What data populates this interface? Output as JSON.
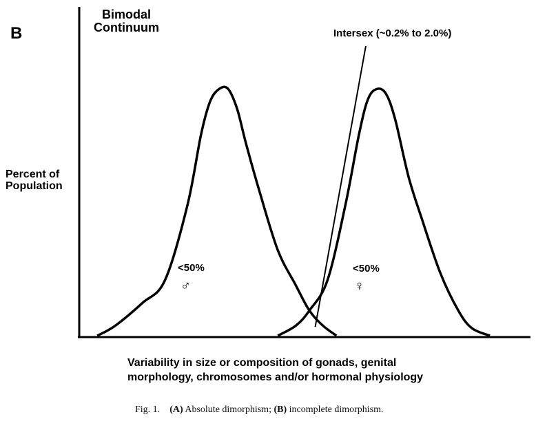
{
  "panel_label": "B",
  "chart_data": {
    "type": "line",
    "title_lines": [
      "Bimodal",
      "Continuum"
    ],
    "ylabel_lines": [
      "Percent of",
      "Population"
    ],
    "xlabel_lines": [
      "Variability in size or composition of gonads, genital",
      "morphology, chromosomes and/or hormonal physiology"
    ],
    "x_range": [
      0,
      100
    ],
    "y_range": [
      0,
      100
    ],
    "series": [
      {
        "name": "male",
        "label": "<50%",
        "symbol": "♂",
        "x": [
          4,
          8,
          14,
          19,
          24,
          27,
          29,
          31,
          33,
          35,
          37,
          40,
          44,
          48,
          51,
          54,
          57
        ],
        "y": [
          0,
          4,
          13,
          22,
          52,
          80,
          93,
          98,
          98,
          90,
          76,
          57,
          34,
          20,
          10,
          4,
          0
        ]
      },
      {
        "name": "female",
        "label": "<50%",
        "symbol": "♀",
        "x": [
          44,
          48,
          51,
          55,
          59,
          62,
          64,
          66,
          68,
          70,
          73,
          76,
          80,
          84,
          87,
          91
        ],
        "y": [
          0,
          4,
          10,
          22,
          52,
          80,
          94,
          98,
          96,
          86,
          63,
          46,
          25,
          10,
          3,
          0
        ]
      }
    ],
    "annotation": {
      "text": "Intersex (~0.2%  to  2.0%)",
      "pointer_from": {
        "x": 63.5,
        "y": 115
      },
      "pointer_to": {
        "x": 52.3,
        "y": 3.5
      }
    }
  },
  "caption": {
    "prefix": "Fig. 1.",
    "a_label": "(A)",
    "a_text": " Absolute dimorphism; ",
    "b_label": "(B)",
    "b_text": " incomplete dimorphism."
  }
}
